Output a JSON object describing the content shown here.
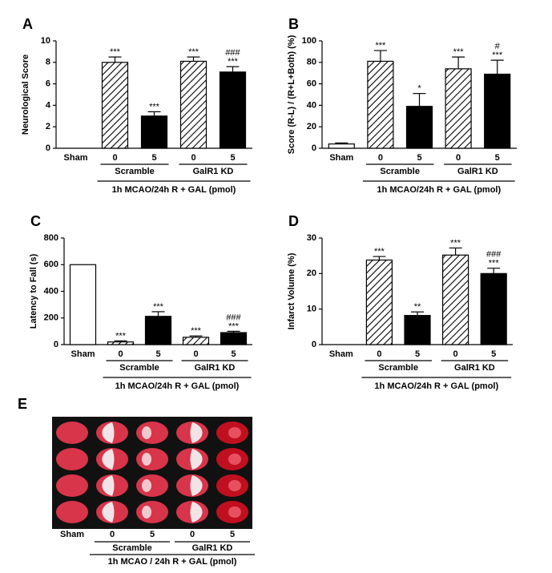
{
  "chart_data": [
    {
      "type": "bar",
      "panel": "A",
      "ylabel": "Neurological Score",
      "xlabel": "1h MCAO/24h R + GAL (pmol)",
      "categories": [
        "Sham",
        "0",
        "5",
        "0",
        "5"
      ],
      "groups": [
        "Scramble",
        "GalR1 KD"
      ],
      "values": [
        0,
        8,
        3,
        8.1,
        7.1
      ],
      "errors": [
        0,
        0.5,
        0.4,
        0.4,
        0.5
      ],
      "annotations": [
        null,
        [
          "***"
        ],
        [
          "***"
        ],
        [
          "***"
        ],
        [
          "###",
          "***"
        ]
      ],
      "fills": [
        "white",
        "hatch",
        "black",
        "hatch",
        "black"
      ],
      "ylim": [
        0,
        10
      ],
      "yticks": [
        0,
        2,
        4,
        6,
        8,
        10
      ]
    },
    {
      "type": "bar",
      "panel": "B",
      "ylabel": "Score (R-L) / (R+L+Both) (%)",
      "xlabel": "1h MCAO/24h R + GAL (pmol)",
      "categories": [
        "Sham",
        "0",
        "5",
        "0",
        "5"
      ],
      "groups": [
        "Scramble",
        "GalR1 KD"
      ],
      "values": [
        4,
        81,
        39,
        74,
        69
      ],
      "errors": [
        1,
        10,
        12,
        11,
        13
      ],
      "annotations": [
        null,
        [
          "***"
        ],
        [
          "*"
        ],
        [
          "***"
        ],
        [
          "#",
          "***"
        ]
      ],
      "fills": [
        "white",
        "hatch",
        "black",
        "hatch",
        "black"
      ],
      "ylim": [
        0,
        100
      ],
      "yticks": [
        0,
        20,
        40,
        60,
        80,
        100
      ]
    },
    {
      "type": "bar",
      "panel": "C",
      "ylabel": "Latency to Fall (s)",
      "xlabel": "1h MCAO/24h R + GAL (pmol)",
      "categories": [
        "Sham",
        "0",
        "5",
        "0",
        "5"
      ],
      "groups": [
        "Scramble",
        "GalR1 KD"
      ],
      "values": [
        600,
        20,
        212,
        55,
        90
      ],
      "errors": [
        0,
        8,
        35,
        10,
        10
      ],
      "annotations": [
        null,
        [
          "***"
        ],
        [
          "***"
        ],
        [
          "***"
        ],
        [
          "###",
          "***"
        ]
      ],
      "fills": [
        "white",
        "hatch",
        "black",
        "hatch",
        "black"
      ],
      "ylim": [
        0,
        800
      ],
      "yticks": [
        0,
        200,
        400,
        600,
        800
      ]
    },
    {
      "type": "bar",
      "panel": "D",
      "ylabel": "Infarct Volume (%)",
      "xlabel": "1h MCAO/24h R + GAL (pmol)",
      "categories": [
        "Sham",
        "0",
        "5",
        "0",
        "5"
      ],
      "groups": [
        "Scramble",
        "GalR1 KD"
      ],
      "values": [
        0,
        23.8,
        8.2,
        25.2,
        20
      ],
      "errors": [
        0,
        1,
        1,
        2,
        1.5
      ],
      "annotations": [
        null,
        [
          "***"
        ],
        [
          "**"
        ],
        [
          "***"
        ],
        [
          "###",
          "***"
        ]
      ],
      "fills": [
        "white",
        "hatch",
        "black",
        "hatch",
        "black"
      ],
      "ylim": [
        0,
        30
      ],
      "yticks": [
        0,
        10,
        20,
        30
      ]
    }
  ],
  "image_panel": {
    "panel": "E",
    "columns": [
      "Sham",
      "0",
      "5",
      "0",
      "5"
    ],
    "groups": [
      "Scramble",
      "GalR1 KD"
    ],
    "xlabel": "1h MCAO / 24h R + GAL (pmol)"
  }
}
